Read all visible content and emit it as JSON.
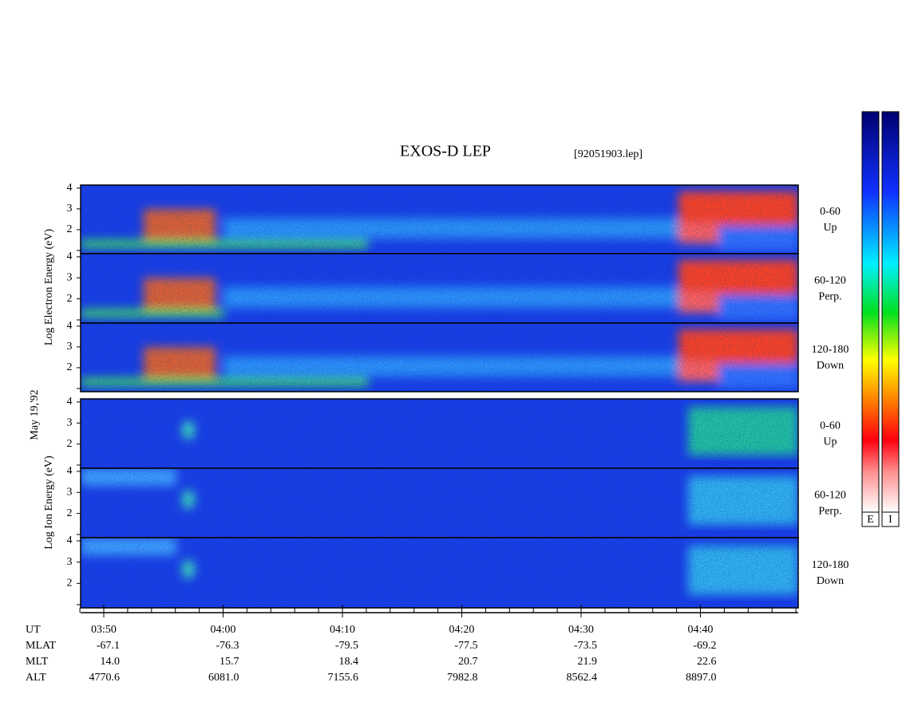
{
  "header": {
    "title": "EXOS-D LEP",
    "file": "[92051903.lep]"
  },
  "date": "May 19,'92",
  "electron": {
    "axis_label": "Log  Electron  Energy  (eV)",
    "yticks": [
      "2",
      "3",
      "4"
    ],
    "panels": [
      {
        "angle": "0-60",
        "dir": "Up"
      },
      {
        "angle": "60-120",
        "dir": "Perp."
      },
      {
        "angle": "120-180",
        "dir": "Down"
      }
    ]
  },
  "ion": {
    "axis_label": "Log  Ion  Energy  (eV)",
    "yticks": [
      "2",
      "3",
      "4"
    ],
    "panels": [
      {
        "angle": "0-60",
        "dir": "Up"
      },
      {
        "angle": "60-120",
        "dir": "Perp."
      },
      {
        "angle": "120-180",
        "dir": "Down"
      }
    ]
  },
  "colorbar": {
    "labels": [
      "E",
      "I"
    ]
  },
  "footer": {
    "rows": [
      {
        "label": "UT",
        "values": [
          "03:50",
          "04:00",
          "04:10",
          "04:20",
          "04:30",
          "04:40"
        ]
      },
      {
        "label": "MLAT",
        "values": [
          "-67.1",
          "-76.3",
          "-79.5",
          "-77.5",
          "-73.5",
          "-69.2"
        ]
      },
      {
        "label": "MLT",
        "values": [
          "14.0",
          "15.7",
          "18.4",
          "20.7",
          "21.9",
          "22.6"
        ]
      },
      {
        "label": "ALT",
        "values": [
          "4770.6",
          "6081.0",
          "7155.6",
          "7982.8",
          "8562.4",
          "8897.0"
        ]
      }
    ]
  }
}
